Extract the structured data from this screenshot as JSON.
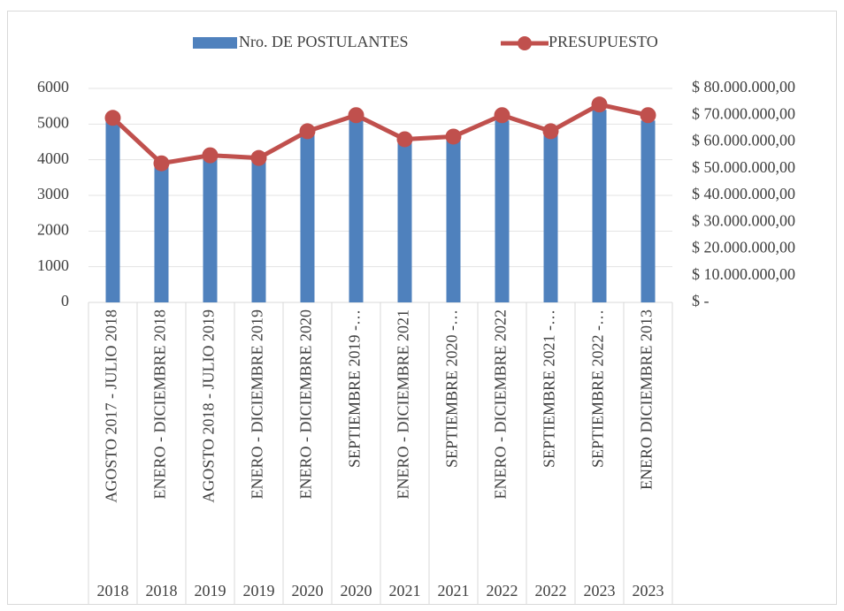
{
  "chart_data": {
    "type": "bar_line",
    "categories": [
      "AGOSTO 2017 - JULIO 2018",
      "ENERO - DICIEMBRE 2018",
      "AGOSTO 2018 - JULIO 2019",
      "ENERO - DICIEMBRE 2019",
      "ENERO - DICIEMBRE 2020",
      "SEPTIEMBRE 2019 -…",
      "ENERO - DICIEMBRE 2021",
      "SEPTIEMBRE 2020 -…",
      "ENERO - DICIEMBRE 2022",
      "SEPTIEMBRE 2021 -…",
      "SEPTIEMBRE 2022 -…",
      "ENERO DICIEMBRE 2013"
    ],
    "years": [
      "2018",
      "2018",
      "2019",
      "2019",
      "2020",
      "2020",
      "2021",
      "2021",
      "2022",
      "2022",
      "2023",
      "2023"
    ],
    "series": [
      {
        "name": "Nro. DE POSTULANTES",
        "color": "#4f81bd",
        "kind": "bar",
        "values": [
          5100,
          3800,
          4100,
          4000,
          4800,
          5200,
          4600,
          4600,
          5100,
          4800,
          5400,
          5100
        ]
      },
      {
        "name": "PRESUPUESTO",
        "color": "#c0504d",
        "kind": "line",
        "axis": "y2",
        "values": [
          69000000,
          52000000,
          55000000,
          54000000,
          64000000,
          70000000,
          61000000,
          62000000,
          70000000,
          64000000,
          74000000,
          70000000
        ]
      }
    ],
    "ylim": [
      0,
      6000
    ],
    "yticks": [
      0,
      1000,
      2000,
      3000,
      4000,
      5000,
      6000
    ],
    "y2lim": [
      0,
      80000000
    ],
    "y2ticks": [
      {
        "value": 0,
        "label": "$ -"
      },
      {
        "value": 10000000,
        "label": "$ 10.000.000,00"
      },
      {
        "value": 20000000,
        "label": "$ 20.000.000,00"
      },
      {
        "value": 30000000,
        "label": "$ 30.000.000,00"
      },
      {
        "value": 40000000,
        "label": "$ 40.000.000,00"
      },
      {
        "value": 50000000,
        "label": "$ 50.000.000,00"
      },
      {
        "value": 60000000,
        "label": "$ 60.000.000,00"
      },
      {
        "value": 70000000,
        "label": "$ 70.000.000,00"
      },
      {
        "value": 80000000,
        "label": "$ 80.000.000,00"
      }
    ],
    "grid": true,
    "legend": "top"
  }
}
